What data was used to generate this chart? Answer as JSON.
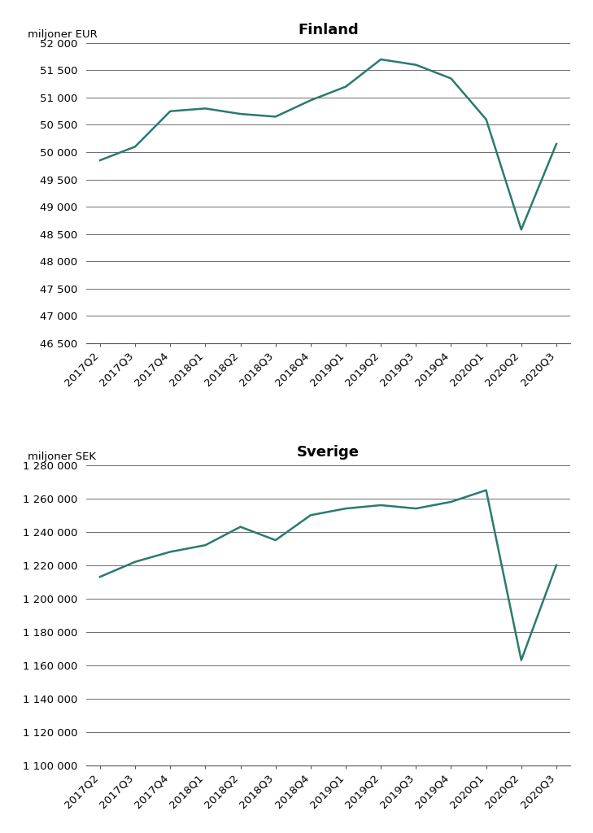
{
  "finland_labels": [
    "2017Q2",
    "2017Q3",
    "2017Q4",
    "2018Q1",
    "2018Q2",
    "2018Q3",
    "2018Q4",
    "2019Q1",
    "2019Q2",
    "2019Q3",
    "2019Q4",
    "2020Q1",
    "2020Q2",
    "2020Q3"
  ],
  "finland_values": [
    49850,
    50100,
    50750,
    50800,
    50700,
    50650,
    50950,
    51200,
    51700,
    51600,
    51350,
    50600,
    48580,
    50150
  ],
  "sverige_labels": [
    "2017Q2",
    "2017Q3",
    "2017Q4",
    "2018Q1",
    "2018Q2",
    "2018Q3",
    "2018Q4",
    "2019Q1",
    "2019Q2",
    "2019Q3",
    "2019Q4",
    "2020Q1",
    "2020Q2",
    "2020Q3"
  ],
  "sverige_values": [
    1213000,
    1222000,
    1228000,
    1232000,
    1243000,
    1235000,
    1250000,
    1254000,
    1256000,
    1254000,
    1258000,
    1265000,
    1163000,
    1220000
  ],
  "finland_title": "Finland",
  "sverige_title": "Sverige",
  "finland_ylabel": "miljoner EUR",
  "sverige_ylabel": "miljoner SEK",
  "line_color": "#2a7a6f",
  "finland_ylim": [
    46500,
    52000
  ],
  "finland_yticks": [
    46500,
    47000,
    47500,
    48000,
    48500,
    49000,
    49500,
    50000,
    50500,
    51000,
    51500,
    52000
  ],
  "sverige_ylim": [
    1100000,
    1280000
  ],
  "sverige_yticks": [
    1100000,
    1120000,
    1140000,
    1160000,
    1180000,
    1200000,
    1220000,
    1240000,
    1260000,
    1280000
  ],
  "background_color": "#ffffff",
  "line_color_grid": "#555555",
  "line_width": 1.8,
  "title_fontsize": 13,
  "label_fontsize": 9.5,
  "tick_fontsize": 9.5
}
